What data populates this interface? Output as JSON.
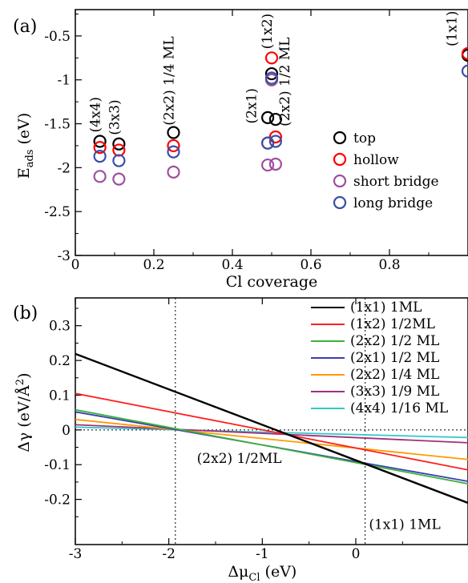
{
  "chart_data": [
    {
      "type": "scatter",
      "panel_label": "(a)",
      "xlabel": "Cl coverage",
      "ylabel_main": "E",
      "ylabel_sub": "ads",
      "ylabel_unit": " (eV)",
      "xlim": [
        0,
        1.0
      ],
      "ylim": [
        -3,
        -0.2
      ],
      "xticks": [
        {
          "v": 0,
          "t": "0"
        },
        {
          "v": 0.2,
          "t": "0.2"
        },
        {
          "v": 0.4,
          "t": "0.4"
        },
        {
          "v": 0.6,
          "t": "0.6"
        },
        {
          "v": 0.8,
          "t": "0.8"
        }
      ],
      "yticks": [
        {
          "v": -0.5,
          "t": "-0.5"
        },
        {
          "v": -1,
          "t": "-1"
        },
        {
          "v": -1.5,
          "t": "-1.5"
        },
        {
          "v": -2,
          "t": "-2"
        },
        {
          "v": -2.5,
          "t": "-2.5"
        },
        {
          "v": -3,
          "t": "-3"
        }
      ],
      "series": [
        {
          "name": "top",
          "color": "#000000",
          "points": [
            [
              0.0625,
              -1.7
            ],
            [
              0.111,
              -1.73
            ],
            [
              0.25,
              -1.6
            ],
            [
              0.49,
              -1.43
            ],
            [
              0.51,
              -1.45
            ],
            [
              0.5,
              -0.93
            ],
            [
              1.0,
              -0.72
            ]
          ]
        },
        {
          "name": "hollow",
          "color": "#ff0000",
          "points": [
            [
              0.0625,
              -1.77
            ],
            [
              0.111,
              -1.8
            ],
            [
              0.25,
              -1.75
            ],
            [
              0.49,
              -1.72
            ],
            [
              0.51,
              -1.65
            ],
            [
              0.5,
              -0.75
            ],
            [
              1.0,
              -0.7
            ]
          ]
        },
        {
          "name": "short bridge",
          "color": "#9e4f9e",
          "points": [
            [
              0.0625,
              -2.1
            ],
            [
              0.111,
              -2.13
            ],
            [
              0.25,
              -2.05
            ],
            [
              0.49,
              -1.97
            ],
            [
              0.51,
              -1.96
            ],
            [
              0.5,
              -1.0
            ]
          ]
        },
        {
          "name": "long bridge",
          "color": "#3a4fa5",
          "points": [
            [
              0.0625,
              -1.87
            ],
            [
              0.111,
              -1.92
            ],
            [
              0.25,
              -1.82
            ],
            [
              0.49,
              -1.72
            ],
            [
              0.51,
              -1.7
            ],
            [
              0.5,
              -0.98
            ],
            [
              1.0,
              -0.9
            ]
          ]
        }
      ],
      "annotations": [
        {
          "text": "(4x4)",
          "x": 0.0625,
          "y": -1.6,
          "rotate": true
        },
        {
          "text": "(3x3)",
          "x": 0.111,
          "y": -1.63,
          "rotate": true
        },
        {
          "text": "(2x2) 1/4 ML",
          "x": 0.25,
          "y": -1.52,
          "rotate": true
        },
        {
          "text": "(1x2)",
          "x": 0.5,
          "y": -0.65,
          "rotate": true
        },
        {
          "text": "(2x1)",
          "x": 0.46,
          "y": -1.5,
          "rotate": true
        },
        {
          "text": "(2x2) 1/2 ML",
          "x": 0.545,
          "y": -1.53,
          "rotate": true
        },
        {
          "text": "(1x1)",
          "x": 0.97,
          "y": -0.62,
          "rotate": true
        }
      ],
      "legend_position": "right"
    },
    {
      "type": "line",
      "panel_label": "(b)",
      "xlabel_main": "Δμ",
      "xlabel_sub": "Cl",
      "xlabel_unit": " (eV)",
      "ylabel_main": "Δγ (eV/Å",
      "ylabel_sup": "2",
      "ylabel_end": ")",
      "xlim": [
        -3,
        1.2
      ],
      "ylim": [
        -0.33,
        0.38
      ],
      "xticks": [
        {
          "v": -3,
          "t": "-3"
        },
        {
          "v": -2,
          "t": "-2"
        },
        {
          "v": -1,
          "t": "-1"
        },
        {
          "v": 0,
          "t": "0"
        }
      ],
      "yticks": [
        {
          "v": 0.3,
          "t": "0.3"
        },
        {
          "v": 0.2,
          "t": "0.2"
        },
        {
          "v": 0.1,
          "t": "0.1"
        },
        {
          "v": 0,
          "t": "0"
        },
        {
          "v": -0.1,
          "t": "-0.1"
        },
        {
          "v": -0.2,
          "t": "-0.2"
        }
      ],
      "series": [
        {
          "name": "(1x1) 1ML",
          "color": "#000000",
          "x": [
            -3,
            1.2
          ],
          "y": [
            0.219,
            -0.21
          ]
        },
        {
          "name": "(1x2) 1/2ML",
          "color": "#ff2020",
          "x": [
            -3,
            1.2
          ],
          "y": [
            0.105,
            -0.115
          ]
        },
        {
          "name": "(2x2) 1/2 ML",
          "color": "#3ab23a",
          "x": [
            -3,
            1.2
          ],
          "y": [
            0.058,
            -0.155
          ]
        },
        {
          "name": "(2x1) 1/2 ML",
          "color": "#3c3cb4",
          "x": [
            -3,
            1.2
          ],
          "y": [
            0.052,
            -0.148
          ]
        },
        {
          "name": "(2x2) 1/4 ML",
          "color": "#ff9a00",
          "x": [
            -3,
            1.2
          ],
          "y": [
            0.03,
            -0.085
          ]
        },
        {
          "name": "(3x3) 1/9 ML",
          "color": "#a0307a",
          "x": [
            -3,
            1.2
          ],
          "y": [
            0.015,
            -0.037
          ]
        },
        {
          "name": "(4x4) 1/16 ML",
          "color": "#30c8c8",
          "x": [
            -3,
            1.2
          ],
          "y": [
            0.008,
            -0.022
          ]
        }
      ],
      "vlines": [
        -1.93,
        0.1
      ],
      "hlines": [
        0
      ],
      "annotations": [
        {
          "text": "(2x2) 1/2ML",
          "x": -1.7,
          "y": -0.095
        },
        {
          "text": "(1x1) 1ML",
          "x": 0.14,
          "y": -0.285
        }
      ],
      "legend_position": "top-right"
    }
  ]
}
